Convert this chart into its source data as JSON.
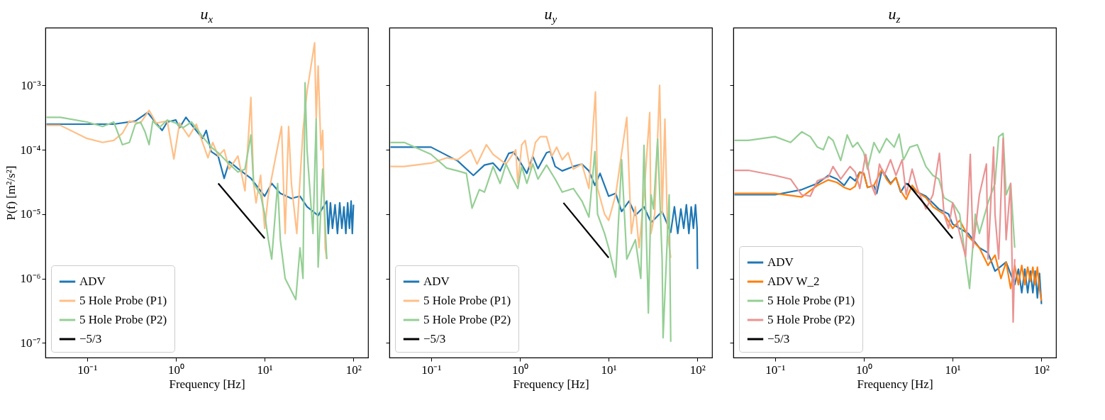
{
  "chart_data": [
    {
      "type": "line",
      "title": "u$_{x}$",
      "xlabel": "Frequency [Hz]",
      "ylabel": "P(f) [m²/s²]",
      "log": "xy",
      "legend": "bottom left",
      "grid": false,
      "xlim": [
        0.034,
        146
      ],
      "ylim": [
        5.9e-08,
        0.0079
      ],
      "xticks": [
        {
          "value": 0.1,
          "label": "10⁻¹"
        },
        {
          "value": 1,
          "label": "10⁰"
        },
        {
          "value": 10,
          "label": "10¹"
        },
        {
          "value": 100,
          "label": "10²"
        }
      ],
      "yticks": [
        {
          "value": 1e-07,
          "label": "10⁻⁷"
        },
        {
          "value": 1e-06,
          "label": "10⁻⁶"
        },
        {
          "value": 1e-05,
          "label": "10⁻⁵"
        },
        {
          "value": 0.0001,
          "label": "10⁻⁴"
        },
        {
          "value": 0.001,
          "label": "10⁻³"
        }
      ],
      "series": [
        {
          "name": "ADV",
          "color": "#1f77b4",
          "x": [
            0.035,
            0.1,
            0.2,
            0.35,
            0.48,
            0.7,
            0.8,
            1.0,
            1.1,
            1.3,
            1.6,
            2.0,
            2.2,
            2.5,
            3,
            3.5,
            4,
            5,
            7,
            10,
            12,
            15,
            20,
            25,
            30,
            40,
            50,
            52,
            55,
            58,
            62,
            66,
            70,
            74,
            78,
            82,
            86,
            90,
            94,
            97,
            100
          ],
          "values": [
            0.00025,
            0.00025,
            0.00025,
            0.00028,
            0.00038,
            0.0002,
            0.00027,
            0.00029,
            0.00022,
            0.00032,
            0.00022,
            0.00015,
            0.0002,
            9.4e-05,
            7.9e-05,
            3.6e-05,
            6.6e-05,
            5.1e-05,
            3.6e-05,
            1.9e-05,
            3e-05,
            2.1e-05,
            1.75e-05,
            1.9e-05,
            1.3e-05,
            9.5e-06,
            1.6e-05,
            5e-06,
            1.5e-05,
            6e-06,
            1.4e-05,
            5e-06,
            1.5e-05,
            6e-06,
            1.3e-05,
            5e-06,
            1.5e-05,
            6e-06,
            1.6e-05,
            5e-06,
            1.4e-05
          ]
        },
        {
          "name": "5 Hole Probe (P1)",
          "color": "#ffbf87",
          "x": [
            0.035,
            0.05,
            0.1,
            0.15,
            0.2,
            0.25,
            0.3,
            0.4,
            0.5,
            0.6,
            0.8,
            0.95,
            1.1,
            1.4,
            1.7,
            2.0,
            2.3,
            2.6,
            3,
            3.5,
            4,
            5,
            6,
            7,
            7.5,
            8,
            9,
            10,
            11,
            15.5,
            17,
            18.6,
            20,
            23,
            27,
            30,
            36.5,
            38,
            40,
            43,
            45,
            48,
            50
          ],
          "values": [
            0.00024,
            0.00024,
            0.00015,
            0.00013,
            0.00014,
            0.00018,
            0.00028,
            0.00026,
            0.00041,
            0.00026,
            0.00028,
            7.2e-05,
            0.00026,
            0.00016,
            0.00025,
            0.00013,
            7.5e-05,
            0.00013,
            8e-05,
            0.0001,
            5e-05,
            8e-05,
            2.3e-05,
            0.00065,
            3e-05,
            1.5e-05,
            4e-05,
            6e-06,
            2e-05,
            0.00023,
            5e-06,
            0.00023,
            3e-05,
            5e-06,
            0.0002,
            0.0008,
            0.0046,
            0.0003,
            0.002,
            0.0001,
            0.0002,
            3e-06,
            2e-06
          ]
        },
        {
          "name": "5 Hole Probe (P2)",
          "color": "#95cf95",
          "x": [
            0.035,
            0.05,
            0.1,
            0.15,
            0.2,
            0.25,
            0.3,
            0.35,
            0.4,
            0.45,
            0.5,
            0.55,
            0.65,
            0.8,
            1.0,
            1.2,
            1.5,
            2,
            2.5,
            3,
            4,
            5,
            6,
            7,
            7.5,
            9,
            10,
            11,
            12,
            14,
            15,
            17,
            22.4,
            25,
            27,
            28.5,
            30,
            35,
            38,
            40,
            45,
            50
          ],
          "values": [
            0.00032,
            0.00032,
            0.00027,
            0.00023,
            0.00027,
            0.00012,
            0.00013,
            0.00025,
            0.00027,
            0.00019,
            0.00012,
            0.00028,
            0.00022,
            0.00029,
            0.00026,
            0.00022,
            0.00027,
            0.00016,
            0.00011,
            9e-05,
            6e-05,
            4.5e-05,
            5e-05,
            0.00017,
            3e-05,
            2e-05,
            1e-05,
            4e-06,
            2e-06,
            3e-05,
            4e-06,
            1e-06,
            4.7e-07,
            3e-06,
            1e-06,
            0.0011,
            0.0001,
            5e-06,
            0.0003,
            1.5e-06,
            5e-05,
            2e-06
          ]
        },
        {
          "name": "−5/3",
          "color": "#000000",
          "x": [
            3,
            10
          ],
          "values": [
            3e-05,
            4.2e-06
          ]
        }
      ]
    },
    {
      "type": "line",
      "title": "u$_{y}$",
      "xlabel": "Frequency [Hz]",
      "log": "xy",
      "legend": "bottom left",
      "grid": false,
      "tick_labels": "x",
      "xlim": [
        0.034,
        146
      ],
      "ylim": [
        5.9e-08,
        0.0079
      ],
      "xticks": [
        {
          "value": 0.1,
          "label": "10⁻¹"
        },
        {
          "value": 1,
          "label": "10⁰"
        },
        {
          "value": 10,
          "label": "10¹"
        },
        {
          "value": 100,
          "label": "10²"
        }
      ],
      "yticks": [
        {
          "value": 1e-07,
          "label": null
        },
        {
          "value": 1e-06,
          "label": null
        },
        {
          "value": 1e-05,
          "label": null
        },
        {
          "value": 0.0001,
          "label": null
        },
        {
          "value": 0.001,
          "label": null
        }
      ],
      "series": [
        {
          "name": "ADV",
          "color": "#1f77b4",
          "x": [
            0.035,
            0.1,
            0.2,
            0.3,
            0.4,
            0.5,
            0.6,
            0.75,
            0.85,
            1.0,
            1.2,
            1.4,
            1.6,
            2.0,
            2.2,
            2.5,
            3,
            4,
            5,
            6,
            7,
            8,
            10,
            12,
            14,
            17,
            20,
            25,
            30,
            40,
            50,
            55,
            60,
            65,
            70,
            75,
            80,
            85,
            90,
            95,
            99,
            100
          ],
          "values": [
            0.00011,
            0.00011,
            6.7e-05,
            4e-05,
            5.8e-05,
            6.2e-05,
            4.7e-05,
            8.8e-05,
            9.2e-05,
            6.6e-05,
            4.3e-05,
            7.9e-05,
            5.1e-05,
            9e-05,
            9.4e-05,
            5.5e-05,
            4.7e-05,
            5.5e-05,
            6e-05,
            4.7e-05,
            2.8e-05,
            4.3e-05,
            1.9e-05,
            2.1e-05,
            1.1e-05,
            1.6e-05,
            9.6e-06,
            1.3e-05,
            7.4e-06,
            1.1e-05,
            5.2e-06,
            1.3e-05,
            5e-06,
            1.2e-05,
            6e-06,
            1.4e-05,
            5e-06,
            1.3e-05,
            6e-06,
            1.4e-05,
            6e-06,
            1.4e-06
          ]
        },
        {
          "name": "5 Hole Probe (P1)",
          "color": "#ffbf87",
          "x": [
            0.035,
            0.05,
            0.1,
            0.15,
            0.2,
            0.28,
            0.33,
            0.42,
            0.5,
            0.6,
            0.7,
            0.9,
            0.95,
            1.05,
            1.15,
            1.3,
            1.5,
            1.7,
            2,
            2.3,
            2.6,
            3,
            3.5,
            4,
            5,
            6,
            7.1,
            7.5,
            9,
            10,
            12,
            16,
            18,
            20,
            22,
            25,
            29,
            30,
            33,
            37.5,
            40,
            43,
            46,
            50
          ],
          "values": [
            5.5e-05,
            5.5e-05,
            6.2e-05,
            7.5e-05,
            7e-05,
            0.0001,
            6e-05,
            0.00012,
            8.5e-05,
            7e-05,
            6e-05,
            0.0001,
            3e-05,
            0.00012,
            0.00014,
            5e-05,
            0.00013,
            0.00016,
            0.00016,
            8e-05,
            0.00011,
            7e-05,
            9e-05,
            5e-05,
            6e-05,
            2.5e-05,
            0.00079,
            2.5e-05,
            1e-05,
            8e-06,
            2e-05,
            0.00032,
            5e-06,
            1.3e-05,
            3e-06,
            2e-05,
            0.00038,
            5e-06,
            1e-05,
            0.001,
            1e-05,
            0.0003,
            5e-06,
            2.1e-06
          ]
        },
        {
          "name": "5 Hole Probe (P2)",
          "color": "#95cf95",
          "x": [
            0.035,
            0.05,
            0.1,
            0.15,
            0.2,
            0.25,
            0.29,
            0.35,
            0.4,
            0.5,
            0.6,
            0.7,
            0.8,
            0.95,
            1.05,
            1.2,
            1.4,
            1.6,
            2,
            2.5,
            3,
            4,
            5,
            6,
            7,
            7.5,
            9,
            10,
            12,
            14,
            16,
            20,
            23,
            25,
            28,
            30,
            32,
            35.6,
            40,
            41,
            48,
            50
          ],
          "values": [
            0.00013,
            0.00013,
            8.5e-05,
            5.2e-05,
            4.7e-05,
            4.3e-05,
            1.24e-05,
            2.4e-05,
            2.2e-05,
            5.5e-05,
            3e-05,
            6e-05,
            4e-05,
            2.5e-05,
            5.5e-05,
            3e-05,
            6e-05,
            3.5e-05,
            5.8e-05,
            3.5e-05,
            2.2e-05,
            2.5e-05,
            1.6e-05,
            9e-06,
            9.4e-05,
            1e-05,
            5e-06,
            3e-06,
            1.05e-06,
            7e-05,
            2e-06,
            4e-06,
            1e-06,
            0.000117,
            2.9e-07,
            2e-05,
            1.2e-05,
            0.000146,
            2e-06,
            1.2e-07,
            2e-05,
            1.04e-07
          ]
        },
        {
          "name": "−5/3",
          "color": "#000000",
          "x": [
            3.1,
            10
          ],
          "values": [
            1.5e-05,
            2.1e-06
          ]
        }
      ]
    },
    {
      "type": "line",
      "title": "u$_{z}$",
      "xlabel": "Frequency [Hz]",
      "log": "xy",
      "legend": "bottom left",
      "grid": false,
      "tick_labels": "x",
      "xlim": [
        0.034,
        146
      ],
      "ylim": [
        5.9e-08,
        0.0079
      ],
      "xticks": [
        {
          "value": 0.1,
          "label": "10⁻¹"
        },
        {
          "value": 1,
          "label": "10⁰"
        },
        {
          "value": 10,
          "label": "10¹"
        },
        {
          "value": 100,
          "label": "10²"
        }
      ],
      "yticks": [
        {
          "value": 1e-07,
          "label": null
        },
        {
          "value": 1e-06,
          "label": null
        },
        {
          "value": 1e-05,
          "label": null
        },
        {
          "value": 0.0001,
          "label": null
        },
        {
          "value": 0.001,
          "label": null
        }
      ],
      "series": [
        {
          "name": "ADV",
          "color": "#1f77b4",
          "x": [
            0.035,
            0.1,
            0.2,
            0.3,
            0.4,
            0.5,
            0.6,
            0.7,
            0.8,
            0.9,
            1.0,
            1.1,
            1.3,
            1.4,
            1.6,
            1.8,
            2,
            2.3,
            2.6,
            3,
            4,
            5,
            7,
            9,
            10,
            15,
            20,
            25,
            30,
            40,
            50,
            55,
            60,
            65,
            70,
            75,
            80,
            85,
            90,
            95,
            100
          ],
          "values": [
            2e-05,
            2e-05,
            2.4e-05,
            3e-05,
            4e-05,
            3.5e-05,
            2.8e-05,
            3.8e-05,
            3.3e-05,
            4.5e-05,
            4.3e-05,
            2.6e-05,
            2.8e-05,
            2.1e-05,
            4.8e-05,
            3.8e-05,
            3e-05,
            3.7e-05,
            2.2e-05,
            3e-05,
            2.2e-05,
            1.9e-05,
            1.2e-05,
            1e-05,
            7e-06,
            5e-06,
            3e-06,
            2.5e-06,
            1.3e-06,
            1.8e-06,
            8e-07,
            1.4e-06,
            6e-07,
            1.4e-06,
            6e-07,
            1.3e-06,
            6e-07,
            1.3e-06,
            5e-07,
            1.2e-06,
            4e-07
          ]
        },
        {
          "name": "ADV W_2",
          "color": "#ff7f0e",
          "x": [
            0.035,
            0.1,
            0.2,
            0.3,
            0.4,
            0.5,
            0.6,
            0.7,
            0.8,
            0.9,
            1.0,
            1.1,
            1.3,
            1.6,
            1.8,
            2,
            2.3,
            2.6,
            3,
            3.5,
            4,
            5,
            6,
            8,
            10,
            12,
            15,
            20,
            25,
            30,
            35,
            40,
            45,
            50,
            55,
            60,
            65,
            70,
            75,
            80,
            85,
            90,
            95,
            100
          ],
          "values": [
            2.1e-05,
            2.1e-05,
            1.85e-05,
            2.8e-05,
            3.4e-05,
            3.1e-05,
            2.6e-05,
            2.4e-05,
            2.7e-05,
            4.4e-05,
            4.3e-05,
            2.6e-05,
            2.8e-05,
            5e-05,
            3.5e-05,
            2.9e-05,
            3.7e-05,
            2.3e-05,
            1.7e-05,
            2.8e-05,
            2.2e-05,
            1.8e-05,
            1.3e-05,
            1e-05,
            6e-06,
            8e-06,
            4.5e-06,
            3e-06,
            1.6e-06,
            2.3e-06,
            1e-06,
            1.8e-06,
            7e-07,
            1.6e-06,
            8e-07,
            1.6e-06,
            8e-07,
            1.5e-06,
            9e-07,
            1.5e-06,
            8e-07,
            1.5e-06,
            7e-07,
            4.5e-07
          ]
        },
        {
          "name": "5 Hole Probe (P1)",
          "color": "#95cf95",
          "x": [
            0.035,
            0.05,
            0.1,
            0.15,
            0.2,
            0.25,
            0.3,
            0.35,
            0.4,
            0.45,
            0.55,
            0.65,
            0.75,
            0.85,
            1.0,
            1.1,
            1.3,
            1.5,
            1.8,
            2.2,
            2.5,
            2.8,
            3.3,
            4,
            5,
            6,
            7,
            8,
            10,
            12,
            15.5,
            18,
            20,
            25,
            30,
            33,
            37,
            40,
            45,
            50
          ],
          "values": [
            0.00014,
            0.00014,
            0.00016,
            0.00013,
            0.00019,
            0.00016,
            0.00011,
            0.0001,
            0.00016,
            0.00014,
            6.8e-05,
            0.00017,
            0.00011,
            0.00013,
            9e-05,
            5e-05,
            0.00013,
            9e-05,
            0.00015,
            0.00011,
            0.000175,
            7e-05,
            0.00011,
            0.00012,
            5.5e-05,
            4e-05,
            3.5e-05,
            1.8e-05,
            1.5e-05,
            1e-05,
            7e-07,
            1e-05,
            5e-06,
            1.5e-05,
            3e-05,
            0.00016,
            0.00018,
            2e-05,
            3e-05,
            3e-06
          ]
        },
        {
          "name": "5 Hole Probe (P2)",
          "color": "#ea9393",
          "x": [
            0.035,
            0.05,
            0.1,
            0.15,
            0.2,
            0.25,
            0.3,
            0.4,
            0.45,
            0.55,
            0.7,
            0.8,
            0.9,
            1.05,
            1.2,
            1.35,
            1.5,
            1.7,
            2,
            2.3,
            2.7,
            3,
            3.5,
            4,
            5,
            6,
            7.1,
            8,
            9,
            10,
            12,
            14,
            15.8,
            17,
            20,
            24,
            25,
            28.9,
            30,
            33,
            37,
            40,
            45,
            48,
            50
          ],
          "values": [
            4.8e-05,
            4.8e-05,
            4e-05,
            3.5e-05,
            2e-05,
            1.9e-05,
            3.3e-05,
            3.8e-05,
            5.5e-05,
            3.5e-05,
            5.5e-05,
            4.5e-05,
            2.5e-05,
            8.5e-05,
            3e-05,
            2e-05,
            6e-05,
            4e-05,
            7e-05,
            4e-05,
            7e-05,
            2e-05,
            5e-05,
            2.5e-05,
            1.2e-05,
            2e-05,
            8.8e-05,
            1e-05,
            6e-06,
            1.5e-05,
            5e-06,
            2.2e-06,
            8.5e-05,
            3e-06,
            2e-05,
            6e-05,
            2e-06,
            0.00011,
            1e-05,
            2e-06,
            0.00015,
            4e-06,
            3e-05,
            2.1e-07,
            2e-06
          ]
        },
        {
          "name": "−5/3",
          "color": "#000000",
          "x": [
            3.1,
            10
          ],
          "values": [
            3e-05,
            4.2e-06
          ]
        }
      ]
    }
  ]
}
